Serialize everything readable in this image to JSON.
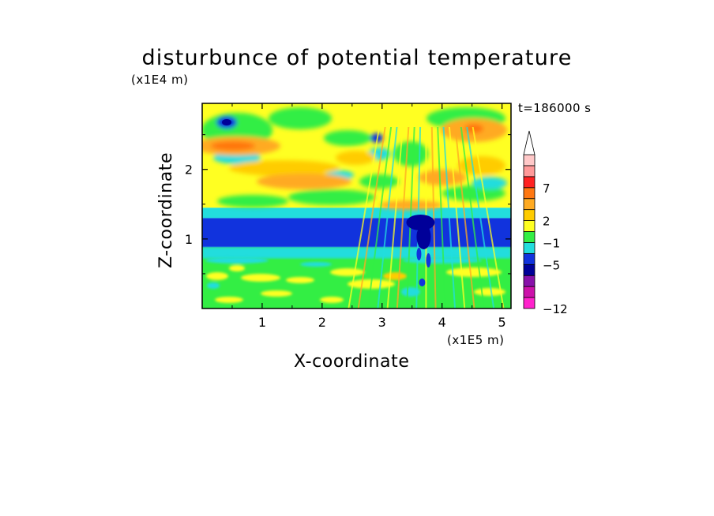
{
  "chart_data": {
    "type": "heatmap",
    "title": "disturbunce of potential temperature",
    "time_label": "t=186000 s",
    "xlabel": "X-coordinate",
    "ylabel": "Z-coordinate",
    "x_unit_label": "(x1E5 m)",
    "y_unit_label": "(x1E4 m)",
    "xlim": [
      0,
      5.15
    ],
    "ylim": [
      0,
      2.95
    ],
    "x_ticks": [
      "1",
      "2",
      "3",
      "4",
      "5"
    ],
    "x_tick_values": [
      1,
      2,
      3,
      4,
      5
    ],
    "y_ticks": [
      "1",
      "2"
    ],
    "y_tick_values": [
      1,
      2
    ],
    "colorbar": {
      "levels": [
        {
          "color": "#ff22cc"
        },
        {
          "color": "#cc11aa"
        },
        {
          "color": "#8811aa"
        },
        {
          "color": "#000099"
        },
        {
          "color": "#1133dd"
        },
        {
          "color": "#22dddd"
        },
        {
          "color": "#33ee44"
        },
        {
          "color": "#ffff22"
        },
        {
          "color": "#ffcc00"
        },
        {
          "color": "#ffaa22"
        },
        {
          "color": "#ff7711"
        },
        {
          "color": "#ff2222"
        },
        {
          "color": "#ff9999"
        },
        {
          "color": "#ffc8c8"
        }
      ],
      "extend_top": true,
      "tick_labels": [
        "-12",
        "-5",
        "-1",
        "2",
        "7"
      ],
      "tick_level_index": [
        0,
        4,
        6,
        8,
        11
      ]
    },
    "bands": [
      {
        "z_range": [
          0.0,
          0.88
        ],
        "color": "#33ee44",
        "desc": "near-zero"
      },
      {
        "z_range": [
          0.88,
          1.3
        ],
        "color": "#1133dd",
        "desc": "negative band"
      },
      {
        "z_range": [
          1.3,
          1.45
        ],
        "color": "#22dddd"
      },
      {
        "z_range": [
          1.45,
          2.95
        ],
        "color": "#ffff22"
      }
    ]
  }
}
